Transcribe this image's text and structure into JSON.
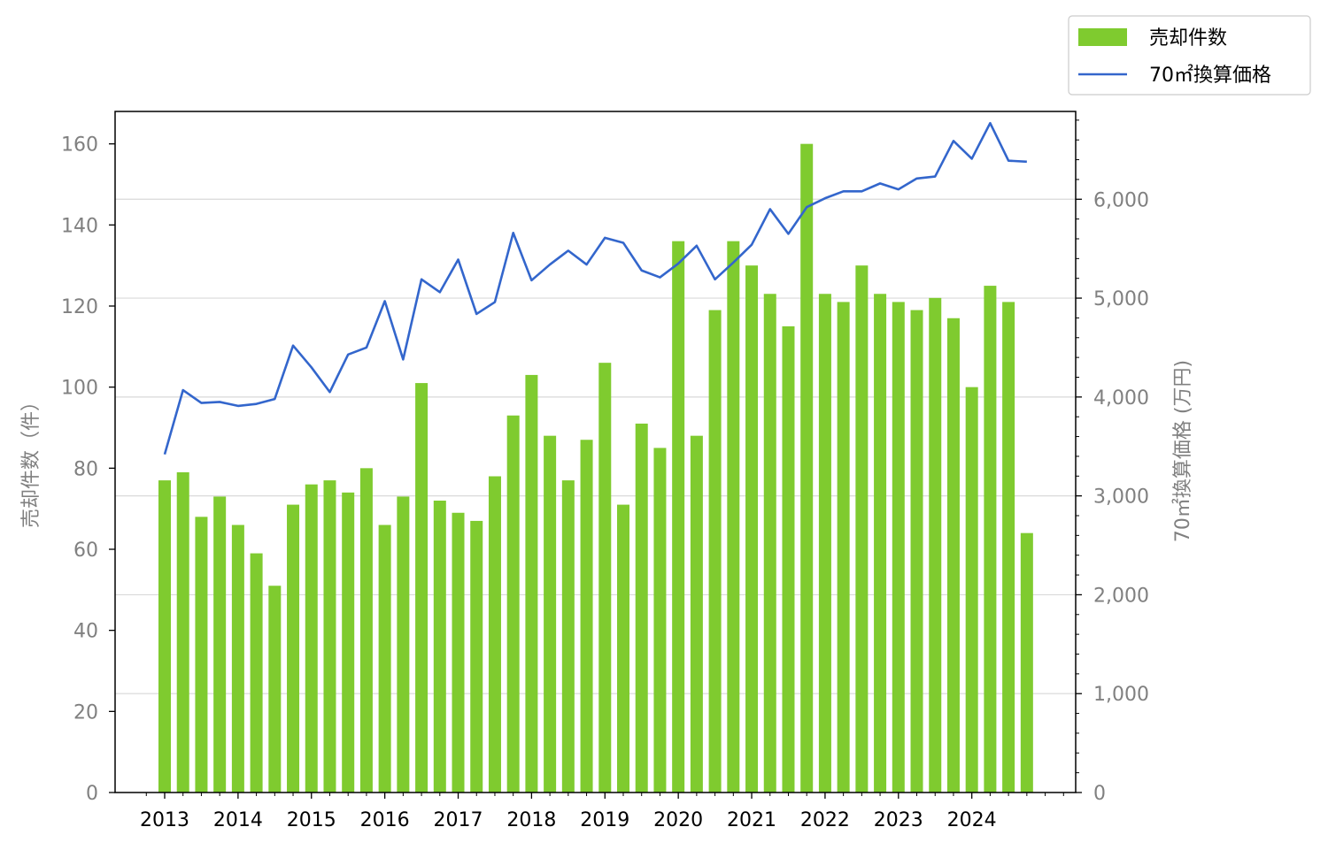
{
  "chart_data": {
    "type": "bar",
    "x_tick_labels": [
      "2013",
      "2014",
      "2015",
      "2016",
      "2017",
      "2018",
      "2019",
      "2020",
      "2021",
      "2022",
      "2023",
      "2024"
    ],
    "series": [
      {
        "name": "売却件数",
        "type": "bar",
        "axis": "left",
        "color": "#7fcb2f",
        "values": [
          77,
          79,
          68,
          73,
          66,
          59,
          51,
          71,
          76,
          77,
          74,
          80,
          66,
          73,
          101,
          72,
          69,
          67,
          78,
          93,
          103,
          88,
          77,
          87,
          106,
          71,
          91,
          85,
          136,
          88,
          119,
          136,
          130,
          123,
          115,
          160,
          123,
          121,
          130,
          123,
          121,
          119,
          122,
          117,
          100,
          125,
          121,
          64
        ]
      },
      {
        "name": "70㎡換算価格",
        "type": "line",
        "axis": "right",
        "color": "#3366cc",
        "values": [
          3420,
          4070,
          3940,
          3950,
          3910,
          3930,
          3980,
          4520,
          4300,
          4050,
          4430,
          4500,
          4970,
          4380,
          5190,
          5060,
          5390,
          4840,
          4960,
          5660,
          5180,
          5340,
          5480,
          5340,
          5610,
          5560,
          5280,
          5210,
          5350,
          5530,
          5190,
          5360,
          5540,
          5900,
          5650,
          5920,
          6010,
          6080,
          6080,
          6160,
          6100,
          6210,
          6230,
          6590,
          6410,
          6770,
          6390,
          6380
        ]
      }
    ],
    "y_left": {
      "label": "売却件数（件）",
      "ylim": [
        0,
        168
      ],
      "ticks": [
        "0",
        "20",
        "40",
        "60",
        "80",
        "100",
        "120",
        "140",
        "160"
      ],
      "tick_values": [
        0,
        20,
        40,
        60,
        80,
        100,
        120,
        140,
        160
      ]
    },
    "y_right": {
      "label": "70㎡換算価格 (万円)",
      "ylim": [
        0,
        6888
      ],
      "ticks": [
        "0",
        "1,000",
        "2,000",
        "3,000",
        "4,000",
        "5,000",
        "6,000"
      ],
      "tick_values": [
        0,
        1000,
        2000,
        3000,
        4000,
        5000,
        6000
      ]
    },
    "grid": "horizontal, right axis",
    "legend": "top-right"
  }
}
